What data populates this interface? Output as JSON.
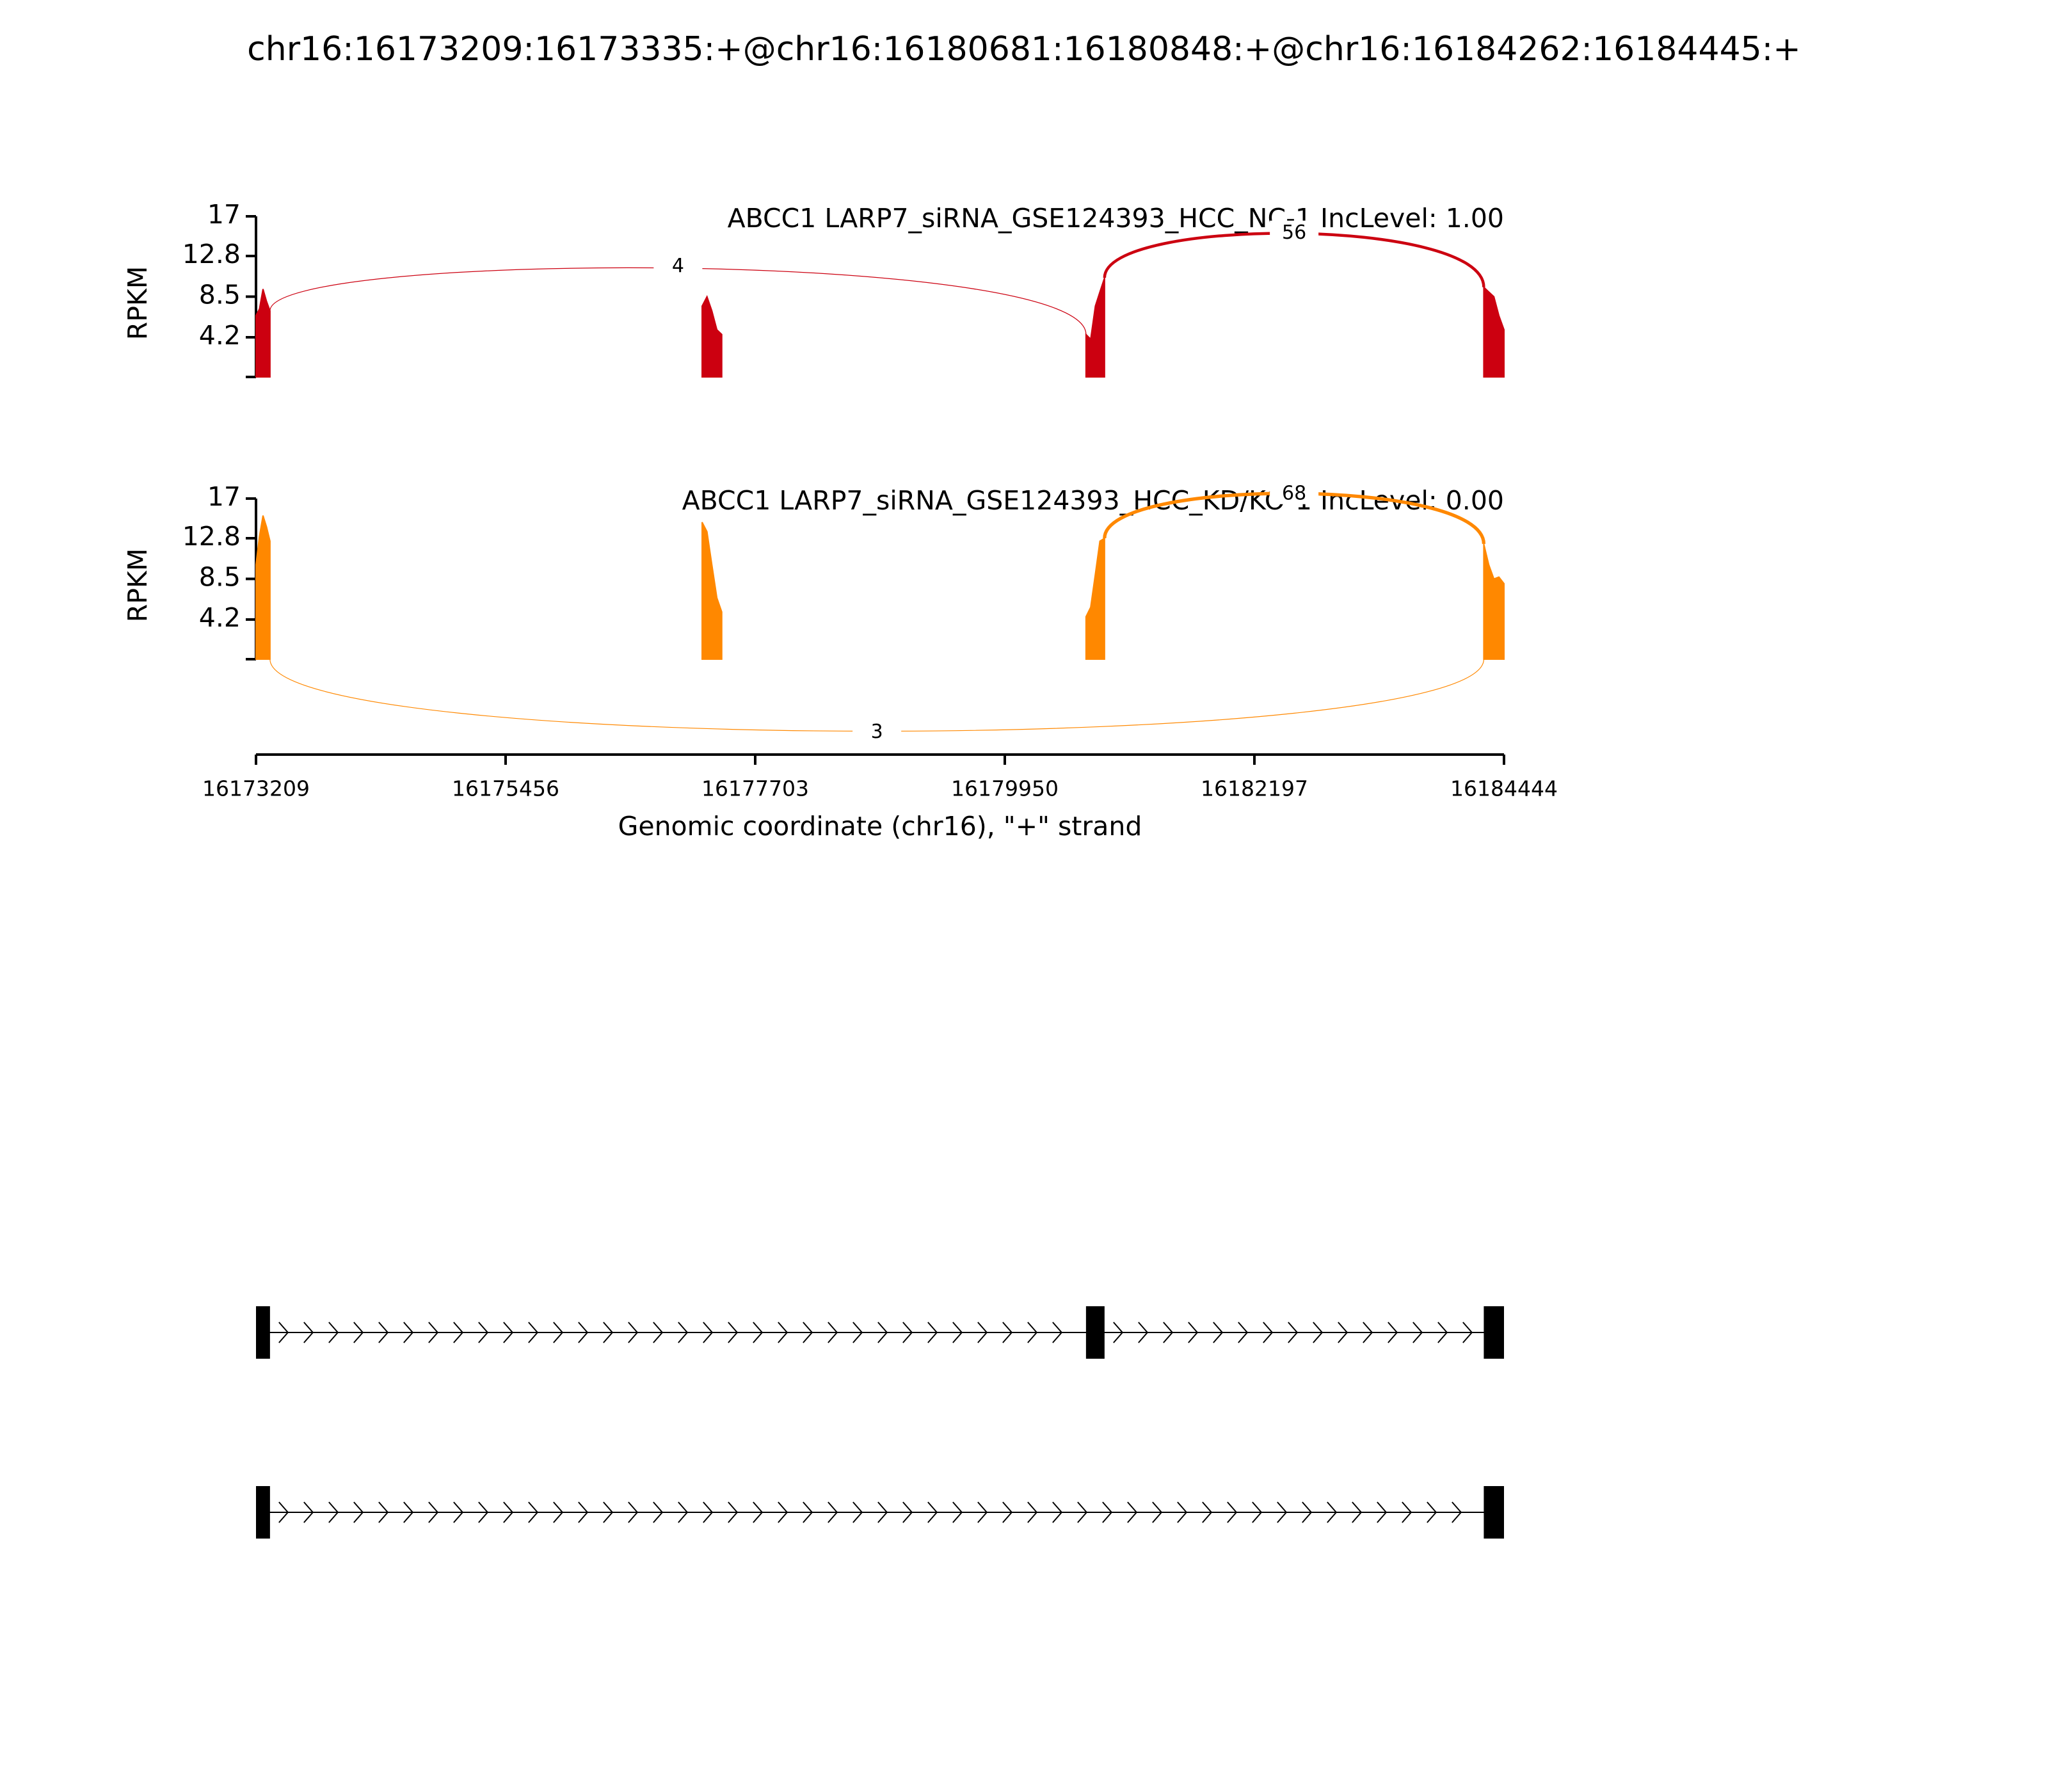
{
  "chart_data": {
    "type": "sashimi",
    "title": "chr16:16173209:16173335:+@chr16:16180681:16180848:+@chr16:16184262:16184445:+",
    "xlim": [
      16173209,
      16184444
    ],
    "xticks": [
      16173209,
      16175456,
      16177703,
      16179950,
      16182197,
      16184444
    ],
    "xlabel": "Genomic coordinate (chr16), \"+\" strand",
    "tracks": [
      {
        "name": "ABCC1 LARP7_siRNA_GSE124393_HCC_NC-1 IncLevel: 1.00",
        "color": "#cc0010",
        "ylabel": "RPKM",
        "ylim": [
          0,
          17
        ],
        "yticks": [
          4.2,
          8.5,
          12.8,
          17
        ],
        "coverage": [
          {
            "x": [
              16173209,
              16173240,
              16173272,
              16173304,
              16173335
            ],
            "values": [
              6.5,
              7.2,
              9.3,
              8.0,
              7.0
            ]
          },
          {
            "x": [
              16177225,
              16177269,
              16177313,
              16177358,
              16177402
            ],
            "values": [
              7.5,
              8.5,
              7.0,
              5.0,
              4.5
            ]
          },
          {
            "x": [
              16180681,
              16180723,
              16180765,
              16180806,
              16180848
            ],
            "values": [
              4.5,
              4.0,
              7.5,
              9.0,
              10.5
            ]
          },
          {
            "x": [
              16184262,
              16184307,
              16184353,
              16184398,
              16184444
            ],
            "values": [
              9.5,
              9.0,
              8.5,
              6.5,
              5.0
            ]
          }
        ],
        "junctions": [
          {
            "start": 16173335,
            "end": 16180681,
            "count": 4,
            "side": "above"
          },
          {
            "start": 16180848,
            "end": 16184262,
            "count": 56,
            "side": "above"
          }
        ]
      },
      {
        "name": "ABCC1 LARP7_siRNA_GSE124393_HCC_KD/KO-1 IncLevel: 0.00",
        "color": "#ff8800",
        "ylabel": "RPKM",
        "ylim": [
          0,
          17
        ],
        "yticks": [
          4.2,
          8.5,
          12.8,
          17
        ],
        "coverage": [
          {
            "x": [
              16173209,
              16173240,
              16173272,
              16173304,
              16173335
            ],
            "values": [
              10.0,
              13.0,
              15.2,
              14.0,
              12.5
            ]
          },
          {
            "x": [
              16177225,
              16177269,
              16177313,
              16177358,
              16177402
            ],
            "values": [
              14.5,
              13.5,
              10.0,
              6.5,
              5.0
            ]
          },
          {
            "x": [
              16180681,
              16180723,
              16180765,
              16180806,
              16180848
            ],
            "values": [
              4.5,
              5.5,
              9.0,
              12.5,
              12.8
            ]
          },
          {
            "x": [
              16184262,
              16184307,
              16184353,
              16184398,
              16184444
            ],
            "values": [
              12.2,
              10.0,
              8.5,
              8.7,
              8.0
            ]
          }
        ],
        "junctions": [
          {
            "start": 16180848,
            "end": 16184262,
            "count": 68,
            "side": "above"
          },
          {
            "start": 16173335,
            "end": 16184262,
            "count": 3,
            "side": "below"
          }
        ]
      }
    ],
    "transcripts": [
      {
        "exons": [
          [
            16173209,
            16173335
          ],
          [
            16180681,
            16180848
          ],
          [
            16184262,
            16184444
          ]
        ]
      },
      {
        "exons": [
          [
            16173209,
            16173335
          ],
          [
            16184262,
            16184444
          ]
        ]
      }
    ]
  }
}
